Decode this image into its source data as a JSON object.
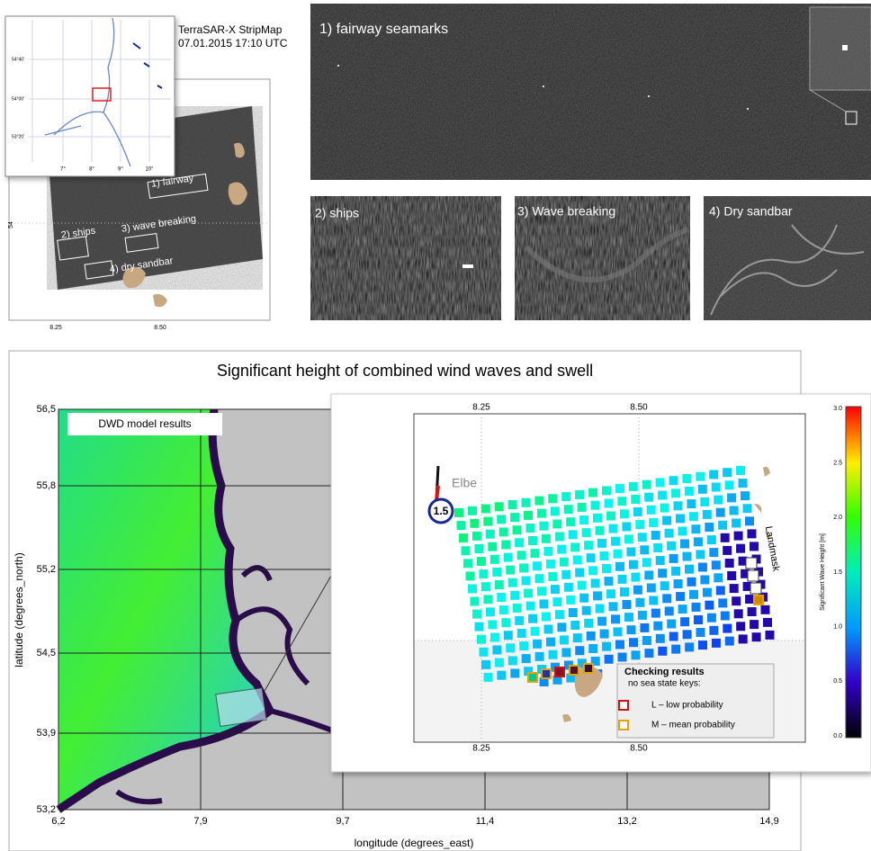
{
  "top_left": {
    "sar_label": "TerraSAR-X StripMap",
    "datetime": "07.01.2015 17:10 UTC",
    "inset_lat_ticks": [
      "54°40'",
      "54°00'",
      "53°20'"
    ],
    "inset_lon_ticks": [
      "7°",
      "8°",
      "9°",
      "10°"
    ],
    "boxes": [
      "1) fairway",
      "2) ships",
      "3) wave breaking",
      "4) dry sandbar"
    ],
    "x_ticks": [
      "8.25",
      "8.50"
    ],
    "y_tick": "54"
  },
  "panels": [
    "1)  fairway seamarks",
    "2) ships",
    "3)  Wave breaking",
    "4)  Dry sandbar"
  ],
  "main": {
    "title": "Significant height of combined wind waves and swell",
    "legend": "DWD  model  results",
    "x_label": "longitude (degrees_east)",
    "y_label": "latitude (degrees_north)",
    "x_ticks": [
      "6,2",
      "7,9",
      "9,7",
      "11,4",
      "13,2",
      "14,9"
    ],
    "y_ticks": [
      "56,5",
      "55,8",
      "55,2",
      "54,5",
      "53,9",
      "53,2"
    ]
  },
  "inset": {
    "top_ticks": [
      "8.25",
      "8.50"
    ],
    "bottom_ticks": [
      "8.25",
      "8.50"
    ],
    "river": "Elbe",
    "gauge": "1.5",
    "landmask": "Landmask",
    "check_title": "Checking results",
    "check_subtitle": "no sea state keys:",
    "check_low": "L –  low probability",
    "check_mean": "M – mean probability",
    "colorbar_label": "Significant Wave Height [m]",
    "colorbar_ticks": [
      "3.0",
      "2.5",
      "2.0",
      "1.5",
      "1.0",
      "0.5",
      "0.0"
    ]
  }
}
